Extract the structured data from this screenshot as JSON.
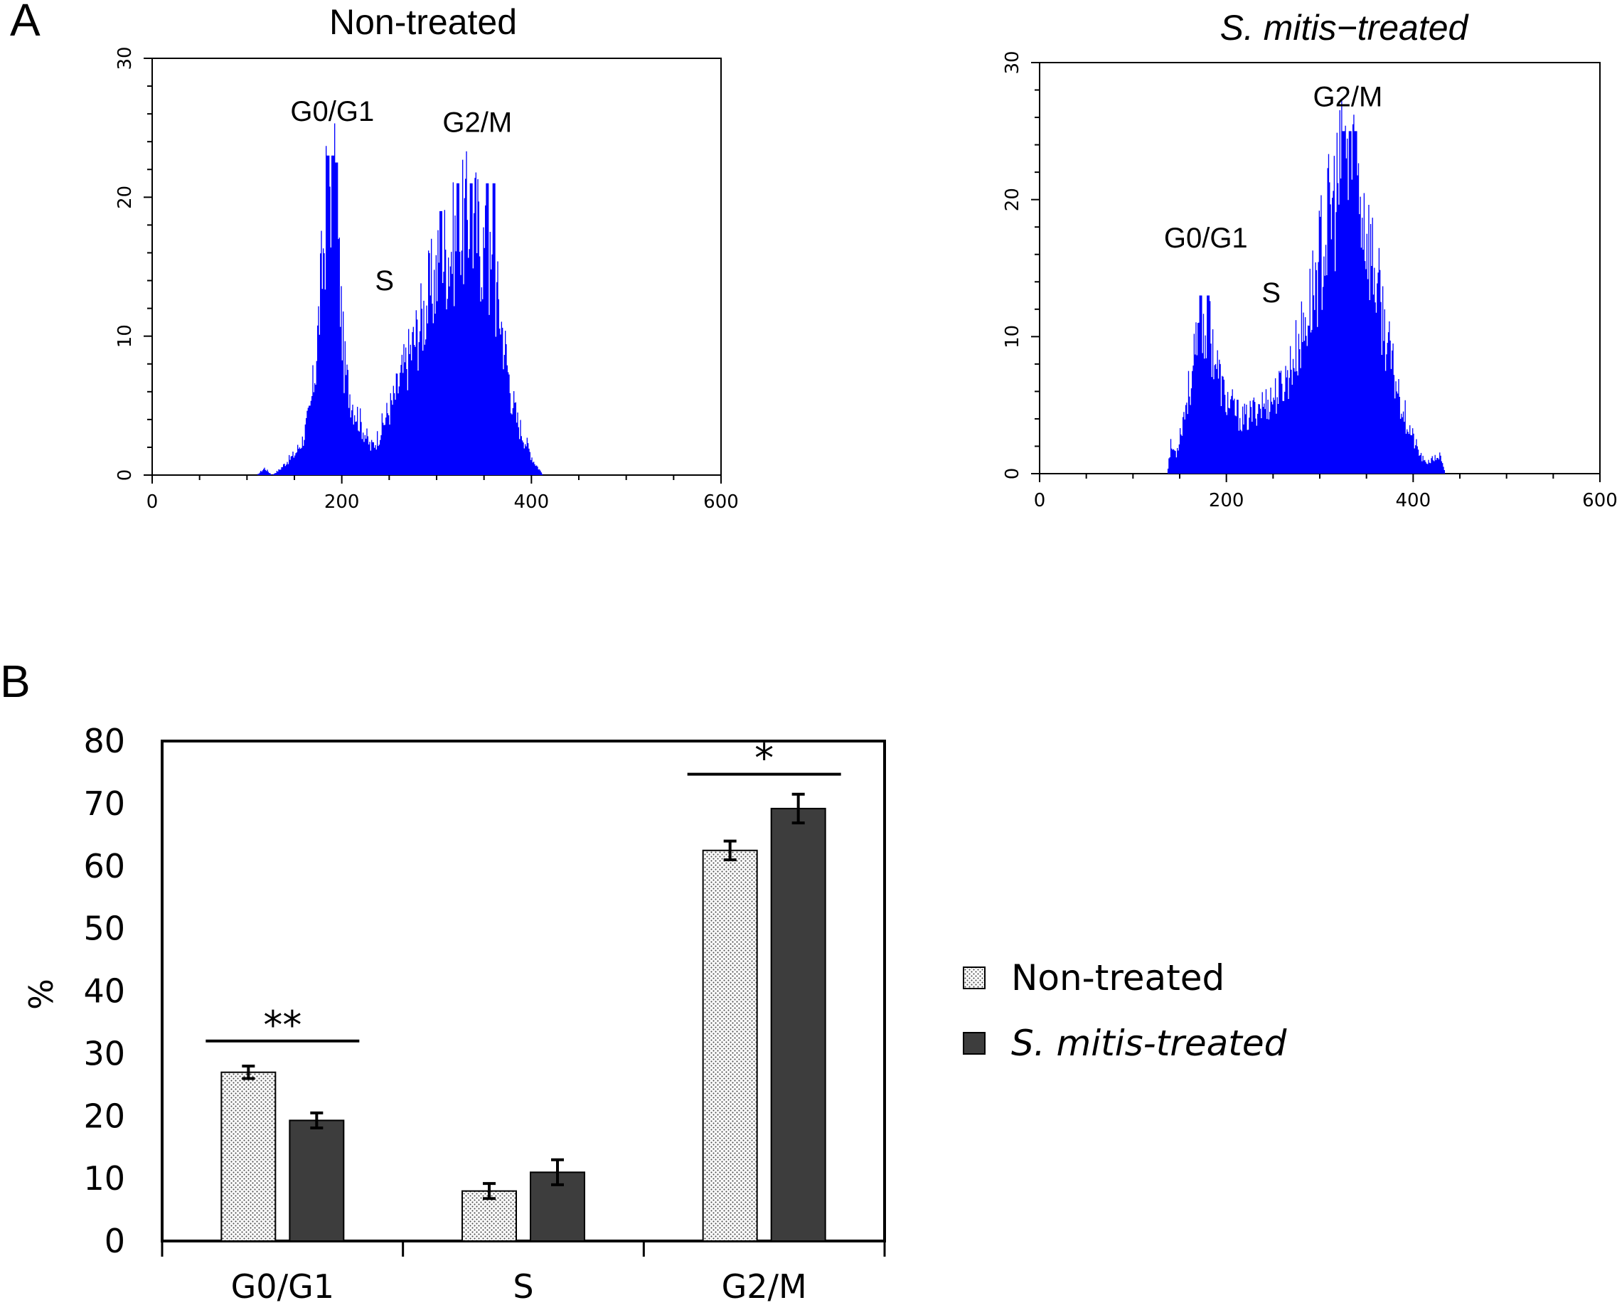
{
  "panel_labels": {
    "a": "A",
    "b": "B"
  },
  "colors": {
    "histogram": "#0000ff",
    "treated": "#3d3d3d",
    "axis": "#000000"
  },
  "chart_data": [
    {
      "type": "area",
      "id": "hist_nontreated",
      "title": "Non-treated",
      "title_italic": false,
      "xlim": [
        0,
        600
      ],
      "ylim": [
        0,
        30
      ],
      "xticks": [
        0,
        200,
        400,
        600
      ],
      "yticks": [
        0,
        10,
        20,
        30
      ],
      "annotations": [
        {
          "text": "G0/G1",
          "x": 190,
          "y": 25.5
        },
        {
          "text": "S",
          "x": 245,
          "y": 13.3
        },
        {
          "text": "G2/M",
          "x": 343,
          "y": 24.7
        }
      ],
      "profile": [
        [
          110,
          0
        ],
        [
          118,
          0.5
        ],
        [
          126,
          0
        ],
        [
          134,
          0.4
        ],
        [
          142,
          1
        ],
        [
          150,
          1.5
        ],
        [
          158,
          2.5
        ],
        [
          166,
          4.5
        ],
        [
          172,
          8
        ],
        [
          178,
          14
        ],
        [
          183,
          19
        ],
        [
          186,
          22
        ],
        [
          190,
          21
        ],
        [
          194,
          19
        ],
        [
          198,
          13
        ],
        [
          202,
          8
        ],
        [
          206,
          6.5
        ],
        [
          212,
          5
        ],
        [
          218,
          4
        ],
        [
          224,
          3
        ],
        [
          230,
          2
        ],
        [
          236,
          2.5
        ],
        [
          242,
          3.5
        ],
        [
          248,
          4.5
        ],
        [
          255,
          5.5
        ],
        [
          262,
          7
        ],
        [
          270,
          8.5
        ],
        [
          278,
          10
        ],
        [
          285,
          11.5
        ],
        [
          292,
          13
        ],
        [
          300,
          14.5
        ],
        [
          308,
          16
        ],
        [
          316,
          16.5
        ],
        [
          324,
          17.5
        ],
        [
          332,
          18.5
        ],
        [
          340,
          18
        ],
        [
          348,
          16.5
        ],
        [
          354,
          15
        ],
        [
          360,
          13.5
        ],
        [
          366,
          12
        ],
        [
          372,
          9
        ],
        [
          378,
          6
        ],
        [
          384,
          4
        ],
        [
          390,
          3
        ],
        [
          396,
          2
        ],
        [
          402,
          1
        ],
        [
          408,
          0.4
        ],
        [
          412,
          0
        ]
      ],
      "peaks": [
        [
          185,
          23
        ],
        [
          190,
          23
        ],
        [
          194,
          22.5
        ],
        [
          304,
          19
        ],
        [
          322,
          21
        ],
        [
          336,
          21
        ],
        [
          353,
          21
        ],
        [
          360,
          21
        ]
      ]
    },
    {
      "type": "area",
      "id": "hist_treated",
      "title": "S. mitis−treated",
      "title_italic": true,
      "xlim": [
        0,
        600
      ],
      "ylim": [
        0,
        30
      ],
      "xticks": [
        0,
        200,
        400,
        600
      ],
      "yticks": [
        0,
        10,
        20,
        30
      ],
      "annotations": [
        {
          "text": "G0/G1",
          "x": 178,
          "y": 16.5
        },
        {
          "text": "S",
          "x": 248,
          "y": 12.5
        },
        {
          "text": "G2/M",
          "x": 330,
          "y": 26.8
        }
      ],
      "profile": [
        [
          136,
          0
        ],
        [
          140,
          2
        ],
        [
          146,
          1.5
        ],
        [
          150,
          3
        ],
        [
          156,
          5
        ],
        [
          162,
          7
        ],
        [
          168,
          9
        ],
        [
          174,
          10.5
        ],
        [
          180,
          11
        ],
        [
          186,
          9
        ],
        [
          192,
          7
        ],
        [
          198,
          5.5
        ],
        [
          204,
          5
        ],
        [
          210,
          4.5
        ],
        [
          216,
          4
        ],
        [
          222,
          4
        ],
        [
          228,
          4.5
        ],
        [
          234,
          5
        ],
        [
          240,
          5
        ],
        [
          248,
          5.5
        ],
        [
          256,
          6
        ],
        [
          264,
          7
        ],
        [
          272,
          8.5
        ],
        [
          280,
          10
        ],
        [
          288,
          12
        ],
        [
          296,
          14.5
        ],
        [
          304,
          17
        ],
        [
          312,
          19
        ],
        [
          320,
          21
        ],
        [
          328,
          22.5
        ],
        [
          336,
          22
        ],
        [
          344,
          20
        ],
        [
          352,
          17
        ],
        [
          360,
          14
        ],
        [
          368,
          11
        ],
        [
          376,
          8
        ],
        [
          384,
          6
        ],
        [
          392,
          4
        ],
        [
          400,
          2.5
        ],
        [
          406,
          1.5
        ],
        [
          412,
          0.8
        ],
        [
          420,
          1
        ],
        [
          428,
          1.3
        ],
        [
          434,
          0
        ]
      ],
      "peaks": [
        [
          172,
          13
        ],
        [
          180,
          13
        ],
        [
          325,
          25
        ],
        [
          332,
          25
        ],
        [
          338,
          25
        ]
      ]
    },
    {
      "type": "bar",
      "id": "bar_cellcycle",
      "categories": [
        "G0/G1",
        "S",
        "G2/M"
      ],
      "ylim": [
        0,
        80
      ],
      "yticks": [
        0,
        10,
        20,
        30,
        40,
        50,
        60,
        70,
        80
      ],
      "ylabel": "%",
      "series": [
        {
          "name": "Non-treated",
          "values": [
            27,
            8,
            62.5
          ],
          "errors": [
            1,
            1.2,
            1.5
          ],
          "pattern": "dotted"
        },
        {
          "name": "S. mitis-treated",
          "values": [
            19.3,
            11,
            69.2
          ],
          "errors": [
            1.2,
            2,
            2.3
          ],
          "pattern": "solid"
        }
      ],
      "significance": [
        {
          "category": "G0/G1",
          "label": "**",
          "y": 32
        },
        {
          "category": "G2/M",
          "label": "*",
          "y": 74.7
        }
      ],
      "legend": {
        "position": "right",
        "entries": [
          "Non-treated",
          "S. mitis-treated"
        ],
        "italic": [
          false,
          true
        ]
      }
    }
  ]
}
